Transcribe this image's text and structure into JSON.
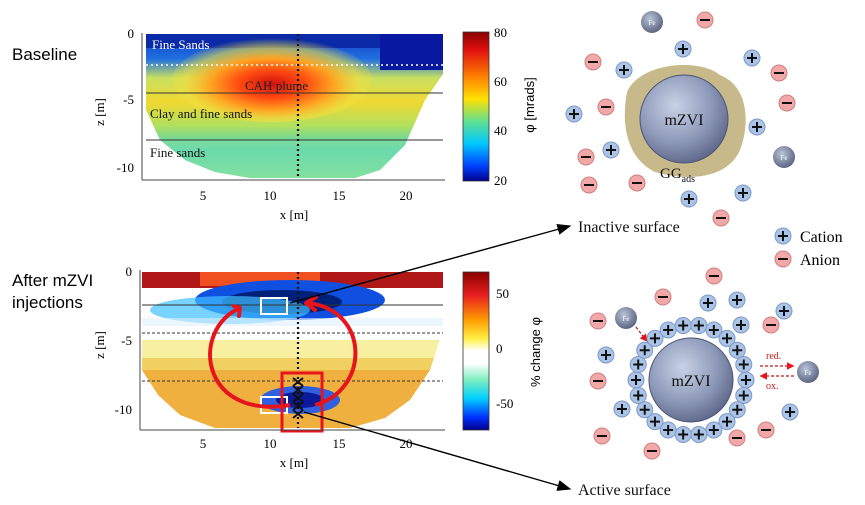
{
  "labels": {
    "baseline": "Baseline",
    "after_line1": "After mZVI",
    "after_line2": "injections"
  },
  "top_panel": {
    "ylabel": "z [m]",
    "xlabel": "x [m]",
    "x_ticks": [
      "5",
      "10",
      "15",
      "20"
    ],
    "y_ticks": [
      "0",
      "-5",
      "-10"
    ],
    "layers": [
      "Fine Sands",
      "CAH plume",
      "Clay and fine sands",
      "Fine sands"
    ],
    "colorbar_label": "φ [mrads]",
    "colorbar_ticks": [
      "80",
      "60",
      "40",
      "20"
    ]
  },
  "bottom_panel": {
    "ylabel": "z [m]",
    "xlabel": "x [m]",
    "x_ticks": [
      "5",
      "10",
      "15",
      "20"
    ],
    "y_ticks": [
      "0",
      "-5",
      "-10"
    ],
    "colorbar_label": "% change φ",
    "colorbar_ticks": [
      "50",
      "0",
      "-50"
    ]
  },
  "particles": {
    "core_label": "mZVI",
    "gg_label": "GG",
    "gg_sub": "ads",
    "fe_label": "Fe",
    "inactive_label": "Inactive surface",
    "active_label": "Active surface",
    "red_label": "red.",
    "ox_label": "ox."
  },
  "legend": {
    "cation": "Cation",
    "anion": "Anion"
  },
  "colors": {
    "arrow_red": "#e8141c",
    "cation_fill": "#aac4e8",
    "anion_fill": "#f2a8a8",
    "gg_fill": "#c7b98a"
  }
}
